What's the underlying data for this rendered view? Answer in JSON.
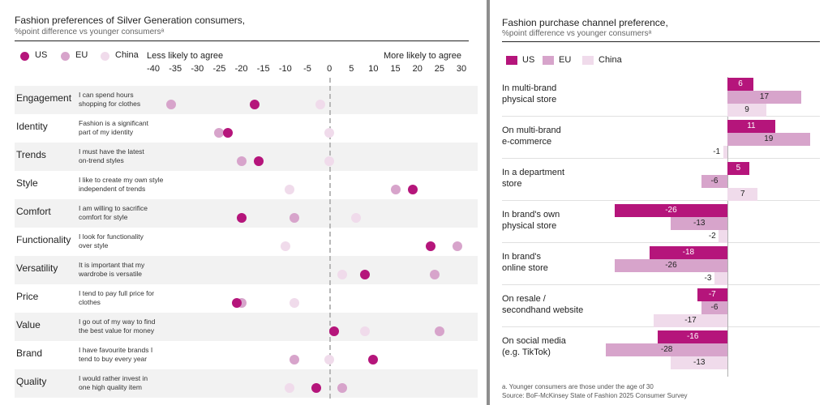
{
  "left": {
    "title": "Fashion preferences of Silver Generation consumers,",
    "subtitle": "%point difference vs younger consumersᵃ",
    "legend": [
      {
        "name": "US",
        "color": "#b5157b"
      },
      {
        "name": "EU",
        "color": "#d7a4cb"
      },
      {
        "name": "China",
        "color": "#f0dbeb"
      }
    ],
    "less_label": "Less likely to agree",
    "more_label": "More likely to agree",
    "row_shade": "#f2f2f2"
  },
  "right": {
    "title": "Fashion purchase channel preference,",
    "subtitle": "%point difference vs younger consumersᵃ",
    "legend": [
      {
        "name": "US",
        "color": "#b5157b"
      },
      {
        "name": "EU",
        "color": "#d7a4cb"
      },
      {
        "name": "China",
        "color": "#f0dbeb"
      }
    ],
    "footnote": "a. Younger consumers are those under the age of 30",
    "source": "Source: BoF-McKinsey State of Fashion 2025 Consumer Survey"
  },
  "chart_data": [
    {
      "type": "scatter",
      "title": "Fashion preferences of Silver Generation consumers,",
      "subtitle": "%point difference vs younger consumersᵃ",
      "xlim": [
        -40,
        30
      ],
      "ticks": [
        "-40",
        "-35",
        "-30",
        "-25",
        "-20",
        "-15",
        "-10",
        "-5",
        "0",
        "5",
        "10",
        "15",
        "20",
        "25",
        "30"
      ],
      "legend_position": "top-left",
      "categories": [
        "Engagement",
        "Identity",
        "Trends",
        "Style",
        "Comfort",
        "Functionality",
        "Versatility",
        "Price",
        "Value",
        "Brand",
        "Quality"
      ],
      "descriptions": [
        [
          "I can spend hours",
          "shopping for clothes"
        ],
        [
          "Fashion is a significant",
          "part of my identity"
        ],
        [
          "I must have the latest",
          "on-trend styles"
        ],
        [
          "I like to create my own style",
          "independent of trends"
        ],
        [
          "I am willing to sacrifice",
          "comfort for style"
        ],
        [
          "I look for functionality",
          "over style"
        ],
        [
          "It is important that my",
          "wardrobe is versatile"
        ],
        [
          "I tend to pay full price for",
          "clothes"
        ],
        [
          "I go out of my way to find",
          "the best value for money"
        ],
        [
          "I have favourite brands I",
          "tend to buy every year"
        ],
        [
          "I would rather invest in",
          "one high quality item"
        ]
      ],
      "series": [
        {
          "name": "US",
          "values": [
            -17,
            -23,
            -16,
            19,
            -20,
            23,
            8,
            -21,
            1,
            10,
            -3
          ]
        },
        {
          "name": "EU",
          "values": [
            -36,
            -25,
            -20,
            15,
            -8,
            29,
            24,
            -20,
            25,
            -8,
            3
          ]
        },
        {
          "name": "China",
          "values": [
            -2,
            0,
            0,
            -9,
            6,
            -10,
            3,
            -8,
            8,
            0,
            -9
          ]
        }
      ]
    },
    {
      "type": "bar",
      "orientation": "horizontal",
      "title": "Fashion purchase channel preference,",
      "subtitle": "%point difference vs younger consumersᵃ",
      "legend_position": "top-left",
      "categories": [
        [
          "In multi-brand",
          "physical store"
        ],
        [
          "On multi-brand",
          "e-commerce"
        ],
        [
          "In a department",
          "store"
        ],
        [
          "In brand's own",
          "physical store"
        ],
        [
          "In brand's",
          "online store"
        ],
        [
          "On resale /",
          "secondhand website"
        ],
        [
          "On social media",
          "(e.g. TikTok)"
        ]
      ],
      "series": [
        {
          "name": "US",
          "values": [
            6,
            11,
            5,
            -26,
            -18,
            -7,
            -16
          ]
        },
        {
          "name": "EU",
          "values": [
            17,
            19,
            -6,
            -13,
            -26,
            -6,
            -28
          ]
        },
        {
          "name": "China",
          "values": [
            9,
            -1,
            7,
            -2,
            -3,
            -17,
            -13
          ]
        }
      ]
    }
  ]
}
